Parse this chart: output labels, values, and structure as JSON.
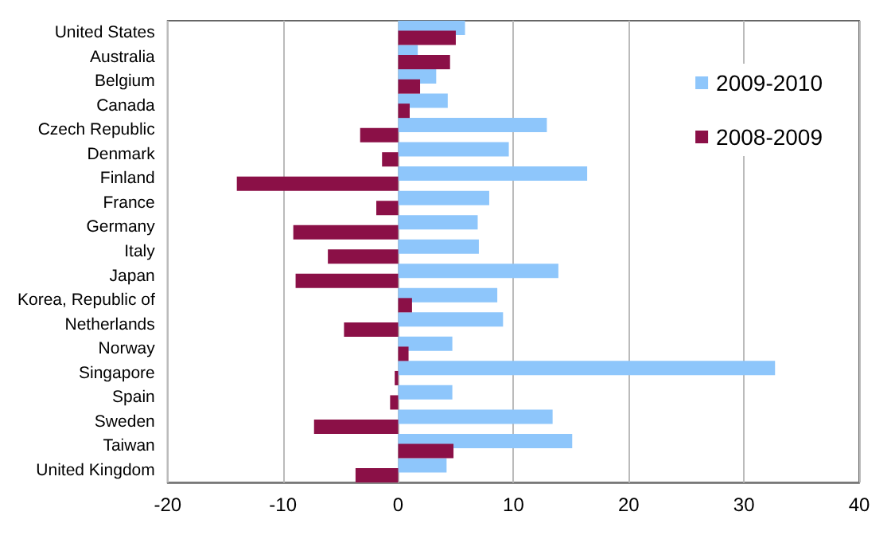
{
  "chart_data": {
    "type": "bar",
    "orientation": "horizontal",
    "categories": [
      "United States",
      "Australia",
      "Belgium",
      "Canada",
      "Czech Republic",
      "Denmark",
      "Finland",
      "France",
      "Germany",
      "Italy",
      "Japan",
      "Korea, Republic of",
      "Netherlands",
      "Norway",
      "Singapore",
      "Spain",
      "Sweden",
      "Taiwan",
      "United Kingdom"
    ],
    "series": [
      {
        "name": "2009-2010",
        "color": "#8ec6fb",
        "values": [
          5.8,
          1.7,
          3.3,
          4.3,
          12.9,
          9.6,
          16.4,
          7.9,
          6.9,
          7.0,
          13.9,
          8.6,
          9.1,
          4.7,
          32.7,
          4.7,
          13.4,
          15.1,
          4.2
        ]
      },
      {
        "name": "2008-2009",
        "color": "#8b1047",
        "values": [
          5.0,
          4.5,
          1.9,
          1.0,
          -3.3,
          -1.4,
          -14.0,
          -1.9,
          -9.1,
          -6.1,
          -8.9,
          1.2,
          -4.7,
          0.9,
          -0.3,
          -0.7,
          -7.3,
          4.8,
          -3.7
        ]
      }
    ],
    "xlim": [
      -20,
      40
    ],
    "xticks": [
      -20,
      -10,
      0,
      10,
      20,
      30,
      40
    ],
    "grid": "x",
    "legend": "right"
  }
}
